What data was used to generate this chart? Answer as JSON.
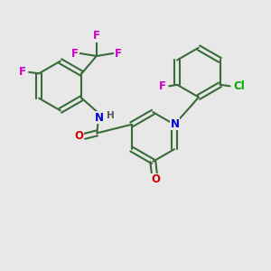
{
  "background_color": "#e8e8e8",
  "bond_color": "#3a6b3a",
  "atom_colors": {
    "F": "#cc00cc",
    "Cl": "#00aa00",
    "N": "#0000cc",
    "O": "#cc0000",
    "H": "#555555",
    "C": "#3a6b3a"
  },
  "figsize": [
    3.0,
    3.0
  ],
  "dpi": 100
}
